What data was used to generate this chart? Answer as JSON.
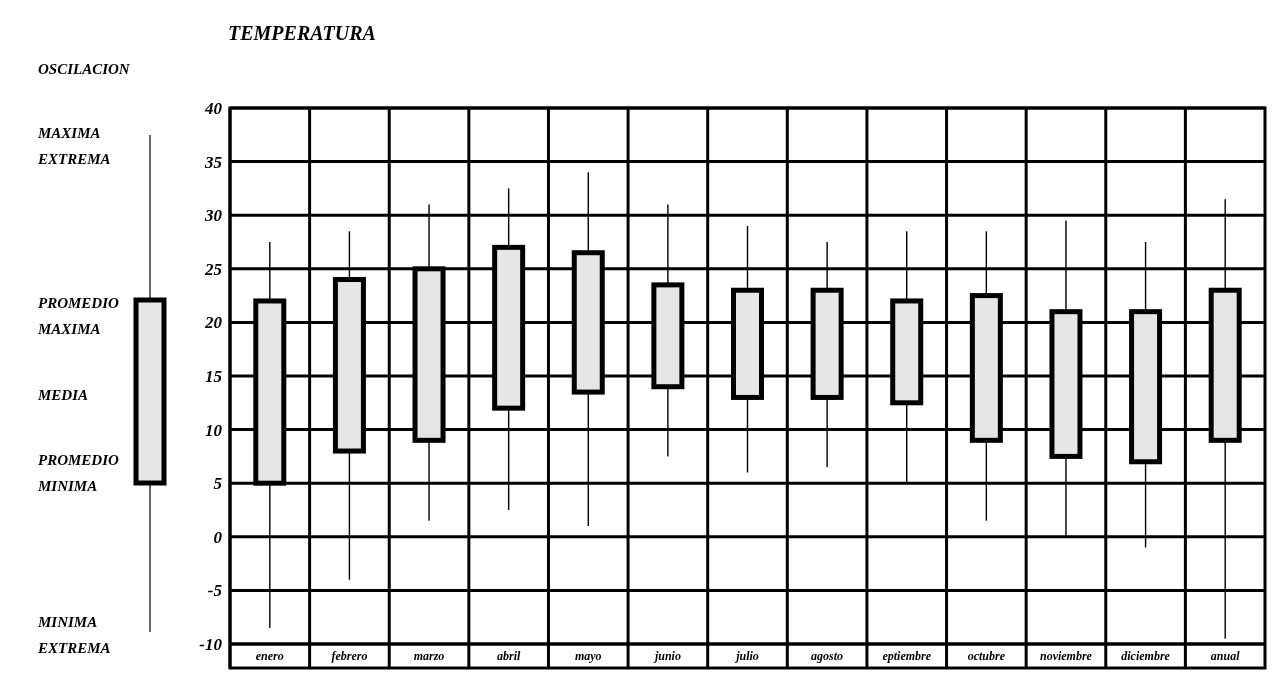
{
  "chart_data": {
    "type": "candlestick",
    "title": "TEMPERATURA",
    "subtitle": "OSCILACION",
    "categories": [
      "enero",
      "febrero",
      "marzo",
      "abril",
      "mayo",
      "junio",
      "julio",
      "agosto",
      "eptiembre",
      "octubre",
      "noviembre",
      "diciembre",
      "anual"
    ],
    "ohlc": [
      [
        5,
        27.5,
        -8.5,
        22
      ],
      [
        8,
        28.5,
        -4,
        24
      ],
      [
        9,
        31,
        1.5,
        25
      ],
      [
        12,
        32.5,
        2.5,
        27
      ],
      [
        13.5,
        34,
        1,
        26.5
      ],
      [
        14,
        31,
        7.5,
        23.5
      ],
      [
        13,
        29,
        6,
        23
      ],
      [
        13,
        27.5,
        6.5,
        23
      ],
      [
        12.5,
        28.5,
        5,
        22
      ],
      [
        9,
        28.5,
        1.5,
        22.5
      ],
      [
        7.5,
        29.5,
        0,
        21
      ],
      [
        7,
        27.5,
        -1,
        21
      ],
      [
        9,
        31.5,
        -9.5,
        23
      ]
    ],
    "color": "#e6e6e6",
    "ylim": [
      -10,
      40
    ],
    "yticks": [
      -10,
      -5,
      0,
      5,
      10,
      15,
      20,
      25,
      30,
      35,
      40
    ],
    "grid": true,
    "annotations": [
      "MAXIMA EXTREMA",
      "PROMEDIO MAXIMA",
      "MEDIA",
      "PROMEDIO MINIMA",
      "MINIMA EXTREMA"
    ]
  }
}
